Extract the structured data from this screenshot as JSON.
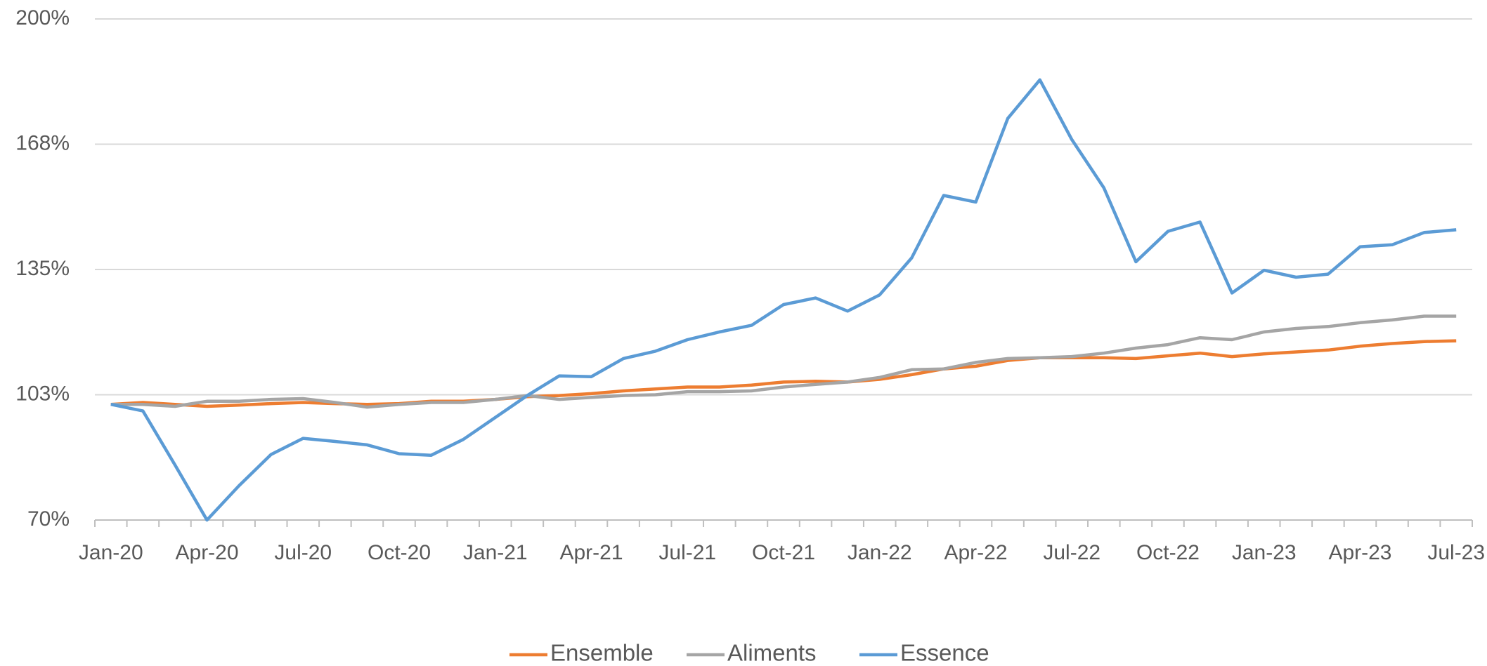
{
  "chart_data": {
    "type": "line",
    "categories": [
      "Jan-20",
      null,
      null,
      "Apr-20",
      null,
      null,
      "Jul-20",
      null,
      null,
      "Oct-20",
      null,
      null,
      "Jan-21",
      null,
      null,
      "Apr-21",
      null,
      null,
      "Jul-21",
      null,
      null,
      "Oct-21",
      null,
      null,
      "Jan-22",
      null,
      null,
      "Apr-22",
      null,
      null,
      "Jul-22",
      null,
      null,
      "Oct-22",
      null,
      null,
      "Jan-23",
      null,
      null,
      "Apr-23",
      null,
      null,
      "Jul-23"
    ],
    "series": [
      {
        "name": "Ensemble",
        "color": "#ed7d31",
        "values": [
          100,
          100.5,
          100,
          99.5,
          99.8,
          100.2,
          100.5,
          100.2,
          100,
          100.2,
          100.8,
          100.8,
          101.3,
          102,
          102.3,
          102.8,
          103.5,
          104,
          104.5,
          104.5,
          105,
          105.8,
          106,
          105.8,
          106.5,
          107.7,
          109.2,
          109.9,
          111.4,
          112.1,
          112.1,
          112.1,
          111.9,
          112.6,
          113.3,
          112.4,
          113.1,
          113.6,
          114.1,
          115.1,
          115.8,
          116.3,
          116.5
        ]
      },
      {
        "name": "Aliments",
        "color": "#a5a5a5",
        "values": [
          100,
          100,
          99.5,
          100.8,
          100.8,
          101.3,
          101.5,
          100.5,
          99.3,
          100,
          100.5,
          100.5,
          101.3,
          102.3,
          101.3,
          101.8,
          102.3,
          102.5,
          103.3,
          103.3,
          103.5,
          104.5,
          105.2,
          105.8,
          107,
          109,
          109.2,
          110.9,
          111.9,
          112.1,
          112.4,
          113.3,
          114.6,
          115.5,
          117.3,
          116.8,
          118.8,
          119.7,
          120.2,
          121.2,
          121.9,
          122.9,
          122.9
        ]
      },
      {
        "name": "Essence",
        "color": "#5b9bd5",
        "values": [
          100,
          98.3,
          84.3,
          70,
          78.9,
          87,
          91.2,
          90.4,
          89.5,
          87.2,
          86.8,
          90.9,
          96.6,
          102.3,
          107.4,
          107.2,
          111.9,
          113.8,
          116.8,
          118.8,
          120.5,
          125.9,
          127.6,
          124.2,
          128.4,
          138,
          154.2,
          152.5,
          174.2,
          184.2,
          168.7,
          156.2,
          137,
          144.9,
          147.3,
          128.9,
          134.8,
          133,
          133.8,
          140.9,
          141.4,
          144.6,
          145.3
        ]
      }
    ],
    "ylim": [
      70,
      200
    ],
    "yticks": [
      {
        "value": 70,
        "label": "70%"
      },
      {
        "value": 102.5,
        "label": "103%"
      },
      {
        "value": 135,
        "label": "135%"
      },
      {
        "value": 167.5,
        "label": "168%"
      },
      {
        "value": 200,
        "label": "200%"
      }
    ],
    "grid": true,
    "legend": "bottom"
  }
}
